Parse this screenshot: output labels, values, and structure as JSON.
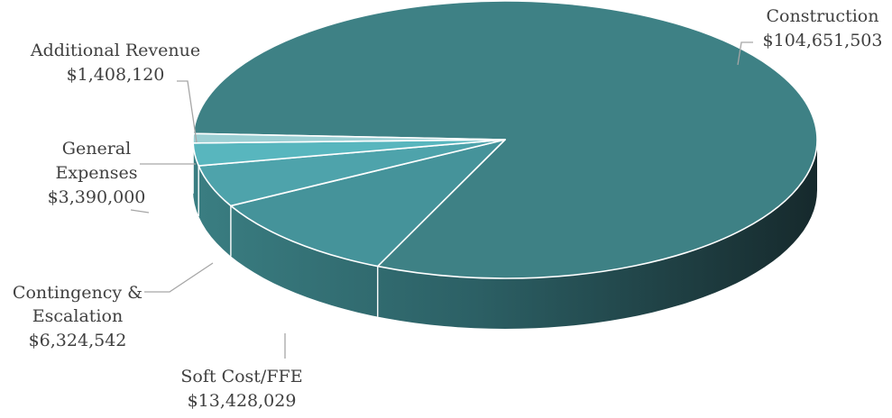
{
  "chart_data": {
    "type": "pie",
    "style": "3d",
    "title": "",
    "slices": [
      {
        "label": "Construction",
        "value_text": "$104,651,503",
        "value": 104651503,
        "color": "#3e8185"
      },
      {
        "label": "Soft Cost/FFE",
        "value_text": "$13,428,029",
        "value": 13428029,
        "color": "#45939a"
      },
      {
        "label": "Contingency & Escalation",
        "value_text": "$6,324,542",
        "value": 6324542,
        "color": "#4ea3ab"
      },
      {
        "label": "General Expenses",
        "value_text": "$3,390,000",
        "value": 3390000,
        "color": "#58b6be"
      },
      {
        "label": "Additional Revenue",
        "value_text": "$1,408,120",
        "value": 1408120,
        "color": "#9ccfd3"
      }
    ],
    "legend": "none"
  }
}
